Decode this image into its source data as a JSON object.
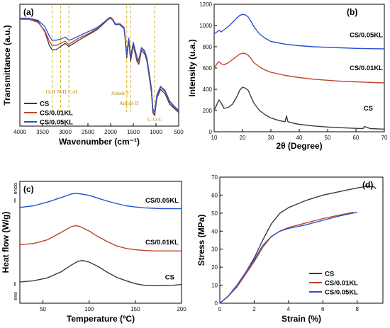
{
  "colors": {
    "CS": "#3a3a3a",
    "CS/0.01KL": "#c0442c",
    "CS/0.05KL": "#2a4fd0",
    "annotation": "#d8b020"
  },
  "chart_data": [
    {
      "panel": "(a)",
      "type": "line",
      "xlabel": "Wavenumber (cm⁻¹)",
      "ylabel": "Transmittance (a.u.)",
      "xlim": [
        4000,
        500
      ],
      "x_reversed": true,
      "xticks": [
        "4000",
        "3500",
        "3000",
        "2500",
        "2000",
        "1500",
        "1000",
        "500"
      ],
      "legend": {
        "placement": "bottom-left",
        "entries": [
          "CS",
          "CS/0.01KL",
          "CS/0.05KL"
        ]
      },
      "annotations": [
        {
          "text": "O-H",
          "x": 3290
        },
        {
          "text": "N-H",
          "x": 3100
        },
        {
          "text": "C-H",
          "x": 2920
        },
        {
          "text": "Amide I",
          "x": 1645
        },
        {
          "text": "Amide II",
          "x": 1560
        },
        {
          "text": "C-O-C",
          "x": 1030
        }
      ],
      "series": [
        {
          "name": "CS",
          "x": [
            4000,
            3800,
            3600,
            3450,
            3350,
            3290,
            3200,
            3100,
            3000,
            2920,
            2850,
            2700,
            2500,
            2300,
            2150,
            2050,
            2000,
            1950,
            1900,
            1800,
            1700,
            1645,
            1600,
            1560,
            1500,
            1420,
            1380,
            1320,
            1250,
            1200,
            1150,
            1100,
            1070,
            1030,
            980,
            900,
            800,
            700,
            600,
            500
          ],
          "y": [
            0.96,
            0.96,
            0.93,
            0.83,
            0.7,
            0.66,
            0.66,
            0.69,
            0.72,
            0.69,
            0.71,
            0.75,
            0.8,
            0.85,
            0.91,
            0.95,
            0.96,
            0.94,
            0.9,
            0.9,
            0.86,
            0.58,
            0.75,
            0.55,
            0.7,
            0.55,
            0.52,
            0.65,
            0.62,
            0.55,
            0.4,
            0.25,
            0.06,
            0.03,
            0.2,
            0.28,
            0.24,
            0.14,
            0.1,
            0.06
          ]
        },
        {
          "name": "CS/0.01KL",
          "x": [
            4000,
            3800,
            3600,
            3450,
            3350,
            3290,
            3200,
            3100,
            3000,
            2920,
            2850,
            2700,
            2500,
            2300,
            2150,
            2050,
            2000,
            1950,
            1900,
            1800,
            1700,
            1645,
            1600,
            1560,
            1500,
            1420,
            1380,
            1320,
            1250,
            1200,
            1150,
            1100,
            1070,
            1030,
            980,
            900,
            800,
            700,
            600,
            500
          ],
          "y": [
            0.95,
            0.95,
            0.92,
            0.84,
            0.74,
            0.7,
            0.7,
            0.72,
            0.74,
            0.71,
            0.73,
            0.77,
            0.81,
            0.86,
            0.92,
            0.96,
            0.97,
            0.95,
            0.91,
            0.91,
            0.87,
            0.6,
            0.77,
            0.57,
            0.72,
            0.57,
            0.54,
            0.67,
            0.64,
            0.57,
            0.42,
            0.27,
            0.08,
            0.05,
            0.22,
            0.3,
            0.26,
            0.16,
            0.11,
            0.07
          ]
        },
        {
          "name": "CS/0.05KL",
          "x": [
            4000,
            3800,
            3600,
            3450,
            3350,
            3290,
            3200,
            3100,
            3000,
            2920,
            2850,
            2700,
            2500,
            2300,
            2150,
            2050,
            2000,
            1950,
            1900,
            1800,
            1700,
            1645,
            1600,
            1560,
            1500,
            1420,
            1380,
            1320,
            1250,
            1200,
            1150,
            1100,
            1070,
            1030,
            980,
            900,
            800,
            700,
            600,
            500
          ],
          "y": [
            0.96,
            0.96,
            0.94,
            0.88,
            0.79,
            0.75,
            0.75,
            0.76,
            0.78,
            0.75,
            0.76,
            0.79,
            0.83,
            0.87,
            0.92,
            0.95,
            0.96,
            0.94,
            0.9,
            0.9,
            0.86,
            0.62,
            0.77,
            0.59,
            0.73,
            0.59,
            0.56,
            0.68,
            0.65,
            0.58,
            0.44,
            0.29,
            0.1,
            0.07,
            0.23,
            0.31,
            0.27,
            0.17,
            0.12,
            0.08
          ]
        }
      ]
    },
    {
      "panel": "(b)",
      "type": "line",
      "xlabel": "2θ (Degree)",
      "ylabel": "Intensity (u.a.)",
      "xlim": [
        10,
        70
      ],
      "ylim": [
        0,
        1200
      ],
      "xticks": [
        "10",
        "20",
        "30",
        "40",
        "50",
        "60",
        "70"
      ],
      "yticks": [
        "0",
        "200",
        "400",
        "600",
        "800",
        "1000",
        "1200"
      ],
      "series": [
        {
          "name": "CS",
          "x": [
            10,
            11,
            11.7,
            12.5,
            13.5,
            15,
            16.5,
            18,
            19,
            20,
            21,
            22,
            23,
            24,
            26,
            28,
            30,
            33,
            35,
            35.5,
            36,
            38,
            40,
            45,
            50,
            55,
            60,
            62.5,
            63,
            65,
            70
          ],
          "y": [
            200,
            260,
            300,
            270,
            220,
            230,
            260,
            330,
            390,
            420,
            410,
            390,
            330,
            270,
            200,
            160,
            130,
            105,
            95,
            150,
            95,
            80,
            70,
            55,
            45,
            38,
            32,
            30,
            50,
            30,
            25
          ]
        },
        {
          "name": "CS/0.01KL",
          "x": [
            10,
            11,
            11.7,
            12.5,
            13.5,
            15,
            16.5,
            18,
            19,
            20,
            21,
            22,
            23,
            24,
            26,
            28,
            30,
            35,
            40,
            45,
            50,
            55,
            60,
            65,
            70
          ],
          "y": [
            600,
            640,
            660,
            640,
            630,
            650,
            680,
            710,
            730,
            740,
            735,
            720,
            690,
            650,
            610,
            580,
            560,
            530,
            510,
            495,
            485,
            475,
            470,
            465,
            460
          ]
        },
        {
          "name": "CS/0.05KL",
          "x": [
            10,
            11,
            11.7,
            12.5,
            13.5,
            15,
            16.5,
            18,
            19,
            20,
            21,
            22,
            23,
            24,
            26,
            28,
            30,
            35,
            40,
            45,
            50,
            55,
            60,
            65,
            70
          ],
          "y": [
            920,
            940,
            955,
            940,
            960,
            990,
            1030,
            1070,
            1095,
            1105,
            1100,
            1080,
            1040,
            990,
            920,
            880,
            850,
            825,
            810,
            800,
            795,
            790,
            785,
            782,
            780
          ]
        }
      ],
      "series_labels": [
        "CS/0.05KL",
        "CS/0.01KL",
        "CS"
      ]
    },
    {
      "panel": "(c)",
      "type": "line",
      "xlabel": "Temperature (ºC)",
      "ylabel": "Heat flow (W/g)",
      "xlim": [
        25,
        200
      ],
      "xticks": [
        "50",
        "100",
        "150",
        "200"
      ],
      "side_labels": {
        "top": "endo",
        "bottom": "exo"
      },
      "series": [
        {
          "name": "CS",
          "x": [
            25,
            40,
            55,
            70,
            80,
            88,
            93,
            100,
            110,
            120,
            130,
            140,
            150,
            160,
            170,
            180,
            190,
            200
          ],
          "y": [
            0.1,
            0.13,
            0.2,
            0.35,
            0.5,
            0.6,
            0.62,
            0.58,
            0.47,
            0.33,
            0.21,
            0.13,
            0.06,
            0.02,
            0.01,
            0.015,
            0.02,
            0.04
          ]
        },
        {
          "name": "CS/0.01KL",
          "x": [
            25,
            40,
            55,
            70,
            80,
            85,
            90,
            100,
            110,
            120,
            130,
            140,
            150,
            160,
            170,
            180,
            190,
            200
          ],
          "y": [
            1.0,
            1.03,
            1.12,
            1.3,
            1.43,
            1.46,
            1.44,
            1.33,
            1.19,
            1.07,
            0.97,
            0.91,
            0.88,
            0.86,
            0.85,
            0.85,
            0.85,
            0.85
          ]
        },
        {
          "name": "CS/0.05KL",
          "x": [
            25,
            40,
            55,
            70,
            80,
            85,
            90,
            100,
            110,
            120,
            130,
            140,
            150,
            160,
            170,
            180,
            190,
            200
          ],
          "y": [
            1.9,
            1.94,
            2.03,
            2.14,
            2.22,
            2.24,
            2.23,
            2.19,
            2.12,
            2.05,
            1.99,
            1.94,
            1.91,
            1.89,
            1.88,
            1.87,
            1.87,
            1.87
          ]
        }
      ],
      "series_labels": [
        "CS/0.05KL",
        "CS/0.01KL",
        "CS"
      ]
    },
    {
      "panel": "(d)",
      "type": "line",
      "xlabel": "Strain (%)",
      "ylabel": "Stress (MPa)",
      "xlim": [
        0,
        9.5
      ],
      "ylim": [
        0,
        70
      ],
      "xticks": [
        "0",
        "2",
        "4",
        "6",
        "8"
      ],
      "yticks": [
        "0",
        "10",
        "20",
        "30",
        "40",
        "50",
        "60",
        "70"
      ],
      "legend": {
        "placement": "bottom-right",
        "entries": [
          "CS",
          "CS/0.01KL",
          "CS/0.05KL"
        ]
      },
      "series": [
        {
          "name": "CS",
          "x": [
            0,
            0.5,
            1,
            1.5,
            2,
            2.5,
            3,
            3.5,
            4,
            4.5,
            5,
            6,
            7,
            8,
            8.6,
            9,
            9.1
          ],
          "y": [
            0,
            4,
            10,
            17,
            25,
            35,
            44,
            50,
            53,
            55,
            57,
            60,
            62,
            64,
            65,
            64.5,
            63.5
          ]
        },
        {
          "name": "CS/0.01KL",
          "x": [
            0,
            0.5,
            1,
            1.5,
            2,
            2.5,
            3,
            3.5,
            4,
            5,
            6,
            7,
            7.8
          ],
          "y": [
            0,
            4,
            9,
            16,
            23,
            31,
            37,
            40,
            42,
            44.5,
            47,
            49,
            50.5
          ]
        },
        {
          "name": "CS/0.05KL",
          "x": [
            0,
            0.5,
            1,
            1.5,
            2,
            2.5,
            3,
            3.5,
            4,
            5,
            6,
            7,
            8
          ],
          "y": [
            0,
            4,
            10,
            17,
            24,
            32,
            37,
            40,
            41.5,
            43.5,
            46,
            48.5,
            50.5
          ]
        }
      ]
    }
  ]
}
